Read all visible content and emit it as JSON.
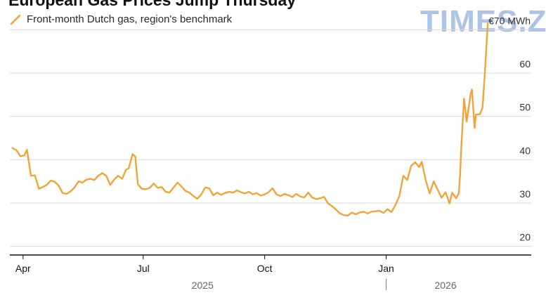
{
  "title": "European Gas Prices Jump Thursday",
  "watermark": "TIMES.ZT",
  "colors": {
    "series": "#f2a33a",
    "grid": "#d9d9d9",
    "axis": "#111111",
    "text": "#333333"
  },
  "chart_data": {
    "type": "line",
    "series": [
      {
        "name": "Front-month Dutch gas, region's benchmark",
        "color": "#f2a33a",
        "points": [
          [
            "2025-03-24",
            42.7
          ],
          [
            "2025-03-27",
            42.2
          ],
          [
            "2025-03-30",
            40.8
          ],
          [
            "2025-04-02",
            41.0
          ],
          [
            "2025-04-04",
            42.3
          ],
          [
            "2025-04-07",
            36.3
          ],
          [
            "2025-04-10",
            36.4
          ],
          [
            "2025-04-13",
            33.3
          ],
          [
            "2025-04-16",
            33.7
          ],
          [
            "2025-04-19",
            34.2
          ],
          [
            "2025-04-22",
            35.2
          ],
          [
            "2025-04-25",
            34.9
          ],
          [
            "2025-04-28",
            34.0
          ],
          [
            "2025-05-01",
            32.3
          ],
          [
            "2025-05-04",
            32.1
          ],
          [
            "2025-05-07",
            32.7
          ],
          [
            "2025-05-10",
            33.6
          ],
          [
            "2025-05-13",
            35.0
          ],
          [
            "2025-05-16",
            34.7
          ],
          [
            "2025-05-19",
            35.4
          ],
          [
            "2025-05-22",
            35.6
          ],
          [
            "2025-05-25",
            35.3
          ],
          [
            "2025-05-28",
            36.3
          ],
          [
            "2025-05-31",
            36.9
          ],
          [
            "2025-06-03",
            36.3
          ],
          [
            "2025-06-06",
            34.2
          ],
          [
            "2025-06-09",
            35.4
          ],
          [
            "2025-06-12",
            36.3
          ],
          [
            "2025-06-15",
            35.6
          ],
          [
            "2025-06-18",
            37.7
          ],
          [
            "2025-06-20",
            38.0
          ],
          [
            "2025-06-23",
            41.3
          ],
          [
            "2025-06-25",
            40.7
          ],
          [
            "2025-06-27",
            34.3
          ],
          [
            "2025-06-30",
            33.3
          ],
          [
            "2025-07-03",
            33.2
          ],
          [
            "2025-07-06",
            33.5
          ],
          [
            "2025-07-09",
            34.5
          ],
          [
            "2025-07-12",
            33.5
          ],
          [
            "2025-07-15",
            33.7
          ],
          [
            "2025-07-18",
            32.6
          ],
          [
            "2025-07-21",
            32.4
          ],
          [
            "2025-07-24",
            33.6
          ],
          [
            "2025-07-27",
            34.7
          ],
          [
            "2025-07-30",
            33.8
          ],
          [
            "2025-08-02",
            32.8
          ],
          [
            "2025-08-05",
            32.4
          ],
          [
            "2025-08-08",
            31.6
          ],
          [
            "2025-08-11",
            31.0
          ],
          [
            "2025-08-14",
            32.0
          ],
          [
            "2025-08-17",
            33.6
          ],
          [
            "2025-08-20",
            33.4
          ],
          [
            "2025-08-23",
            31.8
          ],
          [
            "2025-08-26",
            32.4
          ],
          [
            "2025-08-29",
            31.9
          ],
          [
            "2025-09-01",
            32.3
          ],
          [
            "2025-09-04",
            32.6
          ],
          [
            "2025-09-07",
            32.4
          ],
          [
            "2025-09-10",
            32.9
          ],
          [
            "2025-09-13",
            32.5
          ],
          [
            "2025-09-16",
            32.2
          ],
          [
            "2025-09-19",
            32.6
          ],
          [
            "2025-09-22",
            32.0
          ],
          [
            "2025-09-25",
            32.3
          ],
          [
            "2025-09-28",
            31.7
          ],
          [
            "2025-10-01",
            32.0
          ],
          [
            "2025-10-04",
            32.5
          ],
          [
            "2025-10-07",
            33.4
          ],
          [
            "2025-10-10",
            32.0
          ],
          [
            "2025-10-13",
            31.6
          ],
          [
            "2025-10-16",
            32.1
          ],
          [
            "2025-10-19",
            31.8
          ],
          [
            "2025-10-22",
            31.4
          ],
          [
            "2025-10-25",
            32.1
          ],
          [
            "2025-10-28",
            31.5
          ],
          [
            "2025-10-31",
            31.3
          ],
          [
            "2025-11-03",
            32.4
          ],
          [
            "2025-11-06",
            31.3
          ],
          [
            "2025-11-09",
            30.9
          ],
          [
            "2025-11-12",
            31.1
          ],
          [
            "2025-11-15",
            31.4
          ],
          [
            "2025-11-18",
            29.9
          ],
          [
            "2025-11-21",
            29.3
          ],
          [
            "2025-11-24",
            28.5
          ],
          [
            "2025-11-27",
            27.6
          ],
          [
            "2025-11-30",
            27.2
          ],
          [
            "2025-12-03",
            27.1
          ],
          [
            "2025-12-06",
            27.8
          ],
          [
            "2025-12-09",
            27.4
          ],
          [
            "2025-12-12",
            27.8
          ],
          [
            "2025-12-15",
            28.0
          ],
          [
            "2025-12-18",
            27.6
          ],
          [
            "2025-12-21",
            28.0
          ],
          [
            "2025-12-24",
            28.1
          ],
          [
            "2025-12-27",
            28.2
          ],
          [
            "2025-12-30",
            27.7
          ],
          [
            "2026-01-02",
            28.6
          ],
          [
            "2026-01-05",
            27.9
          ],
          [
            "2026-01-08",
            29.5
          ],
          [
            "2026-01-11",
            31.6
          ],
          [
            "2026-01-14",
            36.3
          ],
          [
            "2026-01-17",
            35.3
          ],
          [
            "2026-01-20",
            38.6
          ],
          [
            "2026-01-23",
            39.4
          ],
          [
            "2026-01-26",
            38.3
          ],
          [
            "2026-01-28",
            39.5
          ],
          [
            "2026-01-31",
            35.2
          ],
          [
            "2026-02-03",
            32.2
          ],
          [
            "2026-02-06",
            35.0
          ],
          [
            "2026-02-09",
            33.1
          ],
          [
            "2026-02-12",
            31.2
          ],
          [
            "2026-02-15",
            32.5
          ],
          [
            "2026-02-18",
            29.9
          ],
          [
            "2026-02-20",
            32.4
          ],
          [
            "2026-02-23",
            31.1
          ],
          [
            "2026-02-25",
            32.2
          ],
          [
            "2026-02-26",
            36.4
          ],
          [
            "2026-02-27",
            43.3
          ],
          [
            "2026-03-01",
            54.1
          ],
          [
            "2026-03-03",
            48.8
          ],
          [
            "2026-03-06",
            55.2
          ],
          [
            "2026-03-07",
            56.2
          ],
          [
            "2026-03-09",
            47.3
          ],
          [
            "2026-03-10",
            50.4
          ],
          [
            "2026-03-13",
            50.5
          ],
          [
            "2026-03-15",
            52.0
          ],
          [
            "2026-03-17",
            61.0
          ],
          [
            "2026-03-19",
            71.5
          ]
        ]
      }
    ],
    "xlabels": [
      {
        "label": "Apr",
        "date": "2025-04-01"
      },
      {
        "label": "Jul",
        "date": "2025-07-01"
      },
      {
        "label": "Oct",
        "date": "2025-10-01"
      },
      {
        "label": "Jan",
        "date": "2026-01-01"
      }
    ],
    "years": [
      {
        "label": "2025",
        "date": "2025-08-15"
      },
      {
        "label": "2026",
        "date": "2026-02-15"
      }
    ],
    "year_divider": "2026-01-01",
    "yticks": [
      20,
      30,
      40,
      50,
      60,
      70
    ],
    "ytick_labels": [
      "20",
      "30",
      "40",
      "50",
      "60",
      "€70 MWh"
    ],
    "xlim": [
      "2025-03-22",
      "2026-04-06"
    ],
    "ylim": [
      18,
      72
    ],
    "grid": "horizontal",
    "y_axis_position": "right",
    "legend_position": "top-left"
  }
}
